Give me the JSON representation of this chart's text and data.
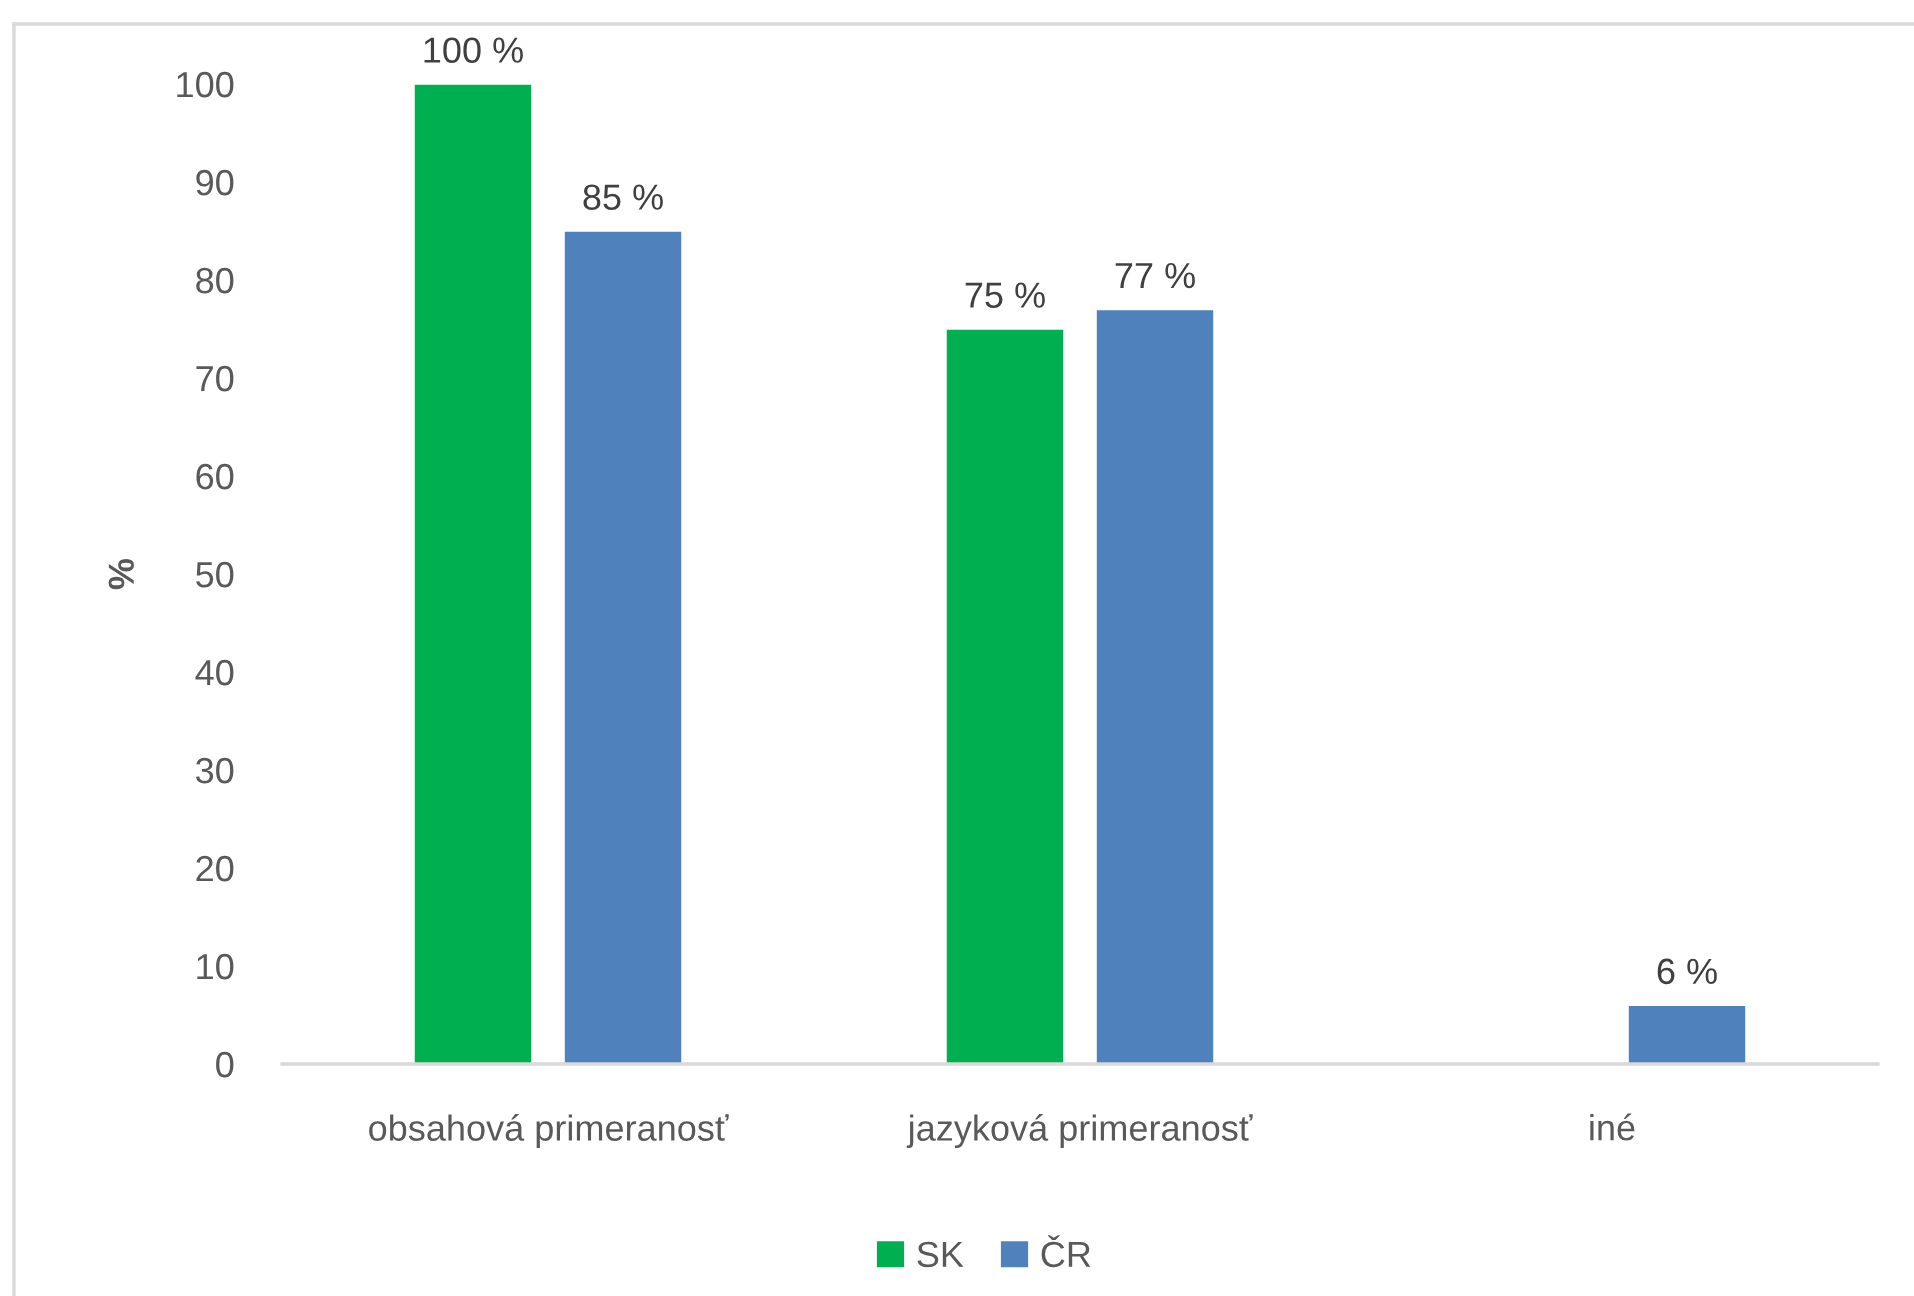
{
  "chart_data": {
    "type": "bar",
    "ylabel": "%",
    "categories": [
      "obsahová primeranosť",
      "jazyková primeranosť",
      "iné"
    ],
    "series": [
      {
        "name": "SK",
        "color": "#00b050",
        "values": [
          100,
          75,
          null
        ],
        "value_labels": [
          "100 %",
          "75 %",
          null
        ]
      },
      {
        "name": "ČR",
        "color": "#4f81bd",
        "values": [
          85,
          77,
          6
        ],
        "value_labels": [
          "85 %",
          "77 %",
          "6 %"
        ]
      }
    ],
    "ylim": [
      0,
      100
    ],
    "yticks": [
      0,
      10,
      20,
      30,
      40,
      50,
      60,
      70,
      80,
      90,
      100
    ],
    "grid": false,
    "legend": "bottom"
  }
}
